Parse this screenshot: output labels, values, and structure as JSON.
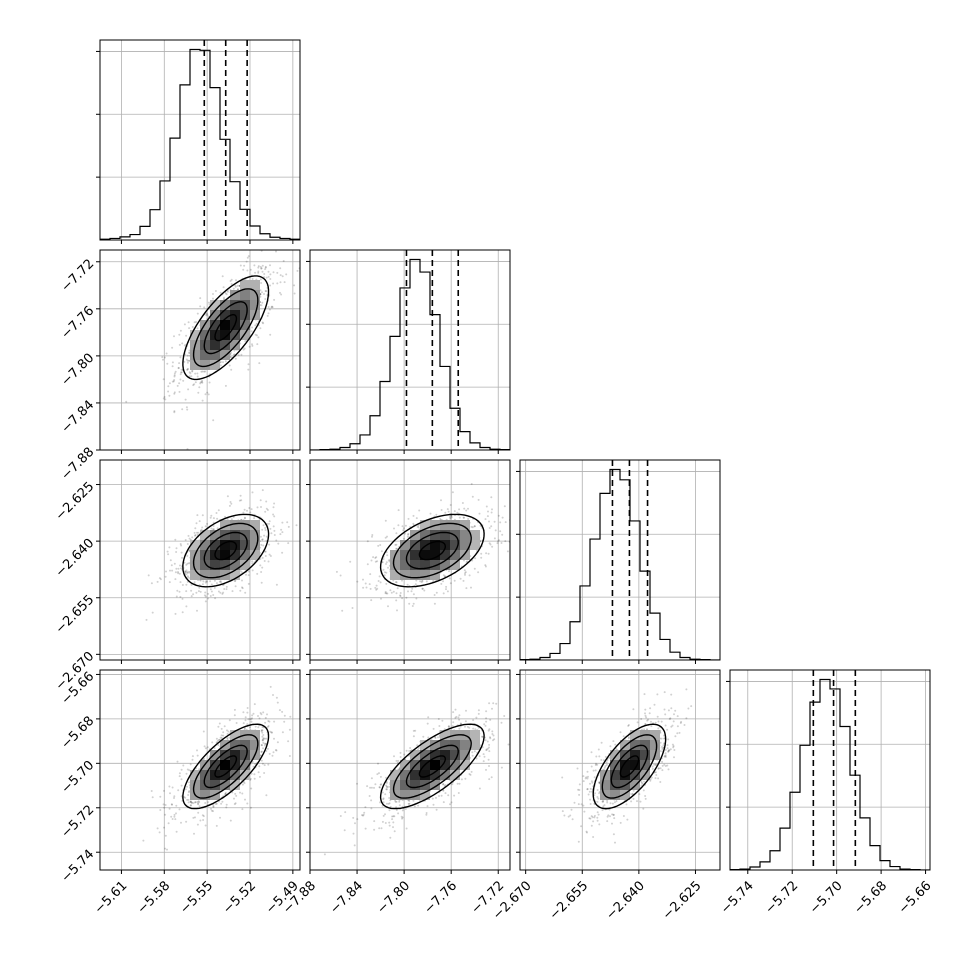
{
  "chart_data": {
    "type": "corner",
    "grid": true,
    "params": [
      {
        "center": -5.537,
        "sd": 0.015,
        "lo": -5.552,
        "hi": -5.522,
        "range": [
          -5.625,
          -5.485
        ],
        "ticks": [
          -5.61,
          -5.58,
          -5.55,
          -5.52,
          -5.49
        ],
        "tick_labels": [
          "−5.61",
          "−5.58",
          "−5.55",
          "−5.52",
          "−5.49"
        ]
      },
      {
        "center": -7.776,
        "sd": 0.022,
        "lo": -7.798,
        "hi": -7.754,
        "range": [
          -7.88,
          -7.71
        ],
        "ticks": [
          -7.88,
          -7.84,
          -7.8,
          -7.76,
          -7.72
        ],
        "tick_labels": [
          "−7.88",
          "−7.84",
          "−7.80",
          "−7.76",
          "−7.72"
        ]
      },
      {
        "center": -2.6425,
        "sd": 0.0048,
        "lo": -2.647,
        "hi": -2.6377,
        "range": [
          -2.6715,
          -2.6185
        ],
        "ticks": [
          -2.67,
          -2.655,
          -2.64,
          -2.625
        ],
        "tick_labels": [
          "−2.670",
          "−2.655",
          "−2.640",
          "−2.625"
        ]
      },
      {
        "center": -5.7014,
        "sd": 0.0095,
        "lo": -5.7105,
        "hi": -5.6916,
        "range": [
          -5.748,
          -5.658
        ],
        "ticks": [
          -5.74,
          -5.72,
          -5.7,
          -5.68,
          -5.66
        ],
        "tick_labels": [
          "−5.74",
          "−5.72",
          "−5.70",
          "−5.68",
          "−5.66"
        ]
      }
    ],
    "histograms": [
      {
        "param": 0,
        "bins": 20,
        "counts": [
          2,
          4,
          8,
          14,
          35,
          78,
          152,
          262,
          399,
          490,
          488,
          392,
          259,
          150,
          79,
          36,
          16,
          7,
          4,
          2
        ]
      },
      {
        "param": 1,
        "bins": 20,
        "counts": [
          0,
          1,
          2,
          6,
          15,
          36,
          82,
          164,
          272,
          388,
          456,
          426,
          324,
          200,
          100,
          44,
          17,
          6,
          2,
          1
        ]
      },
      {
        "param": 2,
        "bins": 20,
        "counts": [
          1,
          2,
          6,
          16,
          40,
          93,
          180,
          294,
          405,
          463,
          438,
          338,
          216,
          114,
          50,
          19,
          6,
          2,
          1,
          0
        ]
      },
      {
        "param": 3,
        "bins": 20,
        "counts": [
          1,
          2,
          7,
          19,
          45,
          98,
          182,
          292,
          393,
          446,
          424,
          336,
          222,
          122,
          57,
          22,
          8,
          2,
          1,
          0
        ]
      }
    ],
    "pairs": [
      {
        "x": 0,
        "y": 1,
        "corr": 0.7
      },
      {
        "x": 0,
        "y": 2,
        "corr": 0.45
      },
      {
        "x": 1,
        "y": 2,
        "corr": 0.45
      },
      {
        "x": 0,
        "y": 3,
        "corr": 0.72
      },
      {
        "x": 1,
        "y": 3,
        "corr": 0.72
      },
      {
        "x": 2,
        "y": 3,
        "corr": 0.65
      }
    ]
  }
}
